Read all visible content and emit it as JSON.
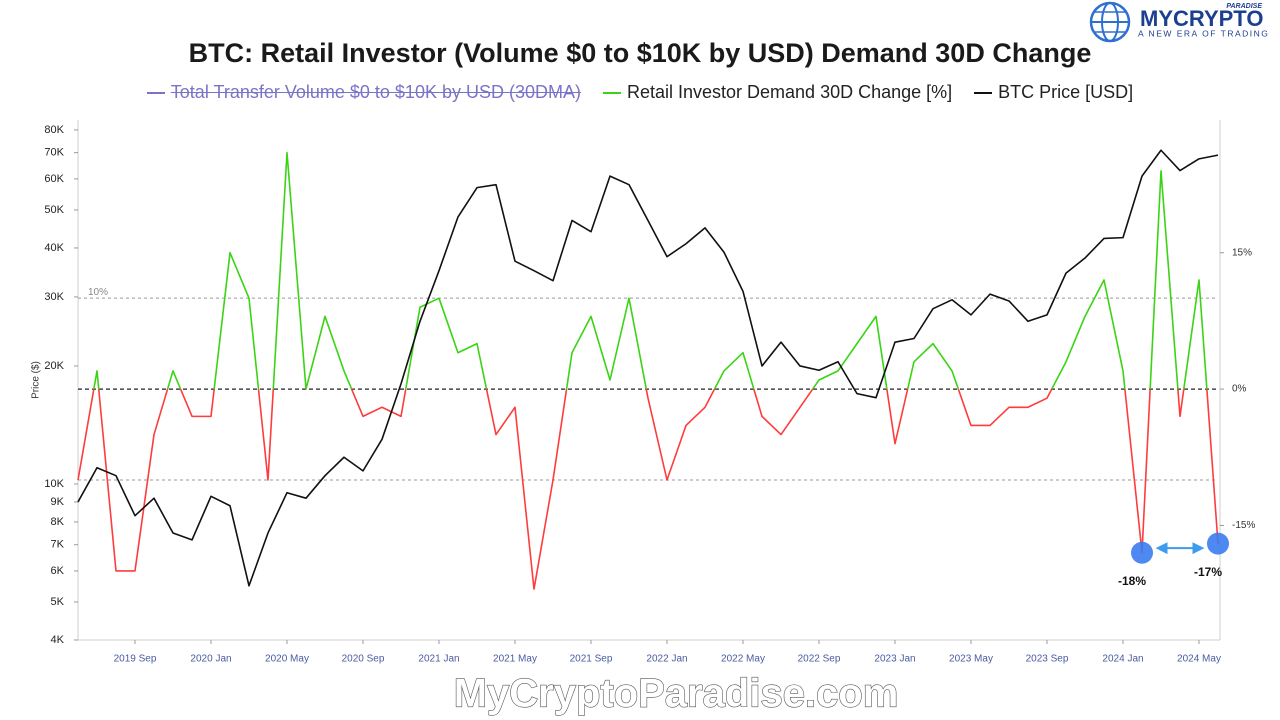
{
  "chart_data": {
    "type": "line",
    "title": "BTC: Retail Investor (Volume $0 to $10K by USD) Demand 30D Change",
    "ylabel": "Price ($)",
    "x": [
      "2019-06",
      "2019-07",
      "2019-08",
      "2019-09",
      "2019-10",
      "2019-11",
      "2019-12",
      "2020-01",
      "2020-02",
      "2020-03",
      "2020-04",
      "2020-05",
      "2020-06",
      "2020-07",
      "2020-08",
      "2020-09",
      "2020-10",
      "2020-11",
      "2020-12",
      "2021-01",
      "2021-02",
      "2021-03",
      "2021-04",
      "2021-05",
      "2021-06",
      "2021-07",
      "2021-08",
      "2021-09",
      "2021-10",
      "2021-11",
      "2021-12",
      "2022-01",
      "2022-02",
      "2022-03",
      "2022-04",
      "2022-05",
      "2022-06",
      "2022-07",
      "2022-08",
      "2022-09",
      "2022-10",
      "2022-11",
      "2022-12",
      "2023-01",
      "2023-02",
      "2023-03",
      "2023-04",
      "2023-05",
      "2023-06",
      "2023-07",
      "2023-08",
      "2023-09",
      "2023-10",
      "2023-11",
      "2023-12",
      "2024-01",
      "2024-02",
      "2024-03",
      "2024-04",
      "2024-05",
      "2024-06"
    ],
    "xlim": [
      "2019-06",
      "2024-06"
    ],
    "xticks": [
      {
        "value": "2019-09",
        "label": "2019 Sep"
      },
      {
        "value": "2020-01",
        "label": "2020 Jan"
      },
      {
        "value": "2020-05",
        "label": "2020 May"
      },
      {
        "value": "2020-09",
        "label": "2020 Sep"
      },
      {
        "value": "2021-01",
        "label": "2021 Jan"
      },
      {
        "value": "2021-05",
        "label": "2021 May"
      },
      {
        "value": "2021-09",
        "label": "2021 Sep"
      },
      {
        "value": "2022-01",
        "label": "2022 Jan"
      },
      {
        "value": "2022-05",
        "label": "2022 May"
      },
      {
        "value": "2022-09",
        "label": "2022 Sep"
      },
      {
        "value": "2023-01",
        "label": "2023 Jan"
      },
      {
        "value": "2023-05",
        "label": "2023 May"
      },
      {
        "value": "2023-09",
        "label": "2023 Sep"
      },
      {
        "value": "2024-01",
        "label": "2024 Jan"
      },
      {
        "value": "2024-05",
        "label": "2024 May"
      }
    ],
    "ylim": [
      4000,
      84800
    ],
    "y_log": true,
    "yticks": [
      {
        "value": 4000,
        "label": "4K"
      },
      {
        "value": 5000,
        "label": "5K"
      },
      {
        "value": 6000,
        "label": "6K"
      },
      {
        "value": 7000,
        "label": "7K"
      },
      {
        "value": 8000,
        "label": "8K"
      },
      {
        "value": 9000,
        "label": "9K"
      },
      {
        "value": 10000,
        "label": "10K"
      },
      {
        "value": 20000,
        "label": "20K"
      },
      {
        "value": 30000,
        "label": "30K"
      },
      {
        "value": 40000,
        "label": "40K"
      },
      {
        "value": 50000,
        "label": "50K"
      },
      {
        "value": 60000,
        "label": "60K"
      },
      {
        "value": 70000,
        "label": "70K"
      },
      {
        "value": 80000,
        "label": "80K"
      }
    ],
    "y2lim": [
      -27.6,
      29.6
    ],
    "y2ticks": [
      {
        "value": 15,
        "label": "15%"
      },
      {
        "value": 0,
        "label": "0%"
      },
      {
        "value": -15,
        "label": "-15%"
      }
    ],
    "y2_reference_lines": [
      {
        "value": 10,
        "label": "10%"
      },
      {
        "value": 0
      },
      {
        "value": -10
      }
    ],
    "series": [
      {
        "name": "Total Transfer Volume  $0 to $10K by USD (30DMA)",
        "color": "#7a74c8",
        "hidden": true
      },
      {
        "name": "Retail Investor Demand 30D Change [%]",
        "color": "#3ad415",
        "negative_color": "#ff3b3b",
        "axis": "y2",
        "values": [
          -10,
          2,
          -20,
          -20,
          -5,
          2,
          -3,
          -3,
          15,
          10,
          -10,
          26,
          0,
          8,
          2,
          -3,
          -2,
          -3,
          9,
          10,
          4,
          5,
          -5,
          -2,
          -22,
          -10,
          4,
          8,
          1,
          10,
          -1,
          -10,
          -4,
          -2,
          2,
          4,
          -3,
          -5,
          -2,
          1,
          2,
          5,
          8,
          -6,
          3,
          5,
          2,
          -4,
          -4,
          -2,
          -2,
          -1,
          3,
          8,
          12,
          2,
          -18,
          24,
          -3,
          12,
          -17
        ]
      },
      {
        "name": "BTC Price [USD]",
        "color": "#111111",
        "values": [
          9000,
          11000,
          10500,
          8300,
          9200,
          7500,
          7200,
          9300,
          8800,
          5500,
          7500,
          9500,
          9200,
          10500,
          11700,
          10800,
          13000,
          18000,
          26000,
          35000,
          48000,
          57000,
          58000,
          37000,
          35000,
          33000,
          47000,
          44000,
          61000,
          58000,
          47000,
          38000,
          41000,
          45000,
          39000,
          31000,
          20000,
          23000,
          20000,
          19500,
          20500,
          17000,
          16600,
          23000,
          23500,
          28000,
          29500,
          27000,
          30500,
          29300,
          26000,
          27000,
          34500,
          37700,
          42300,
          42500,
          61000,
          71000,
          63000,
          67500,
          69000
        ]
      }
    ],
    "annotations": [
      {
        "text": "-18%",
        "x": "2024-02",
        "color": "#3b7bef"
      },
      {
        "text": "-17%",
        "x": "2024-06",
        "color": "#3b7bef"
      }
    ]
  },
  "branding": {
    "logo": "MYCRYPTO",
    "logo_small": "PARADISE",
    "tagline": "A NEW ERA OF TRADING",
    "watermark": "MyCryptoParadise.com"
  }
}
